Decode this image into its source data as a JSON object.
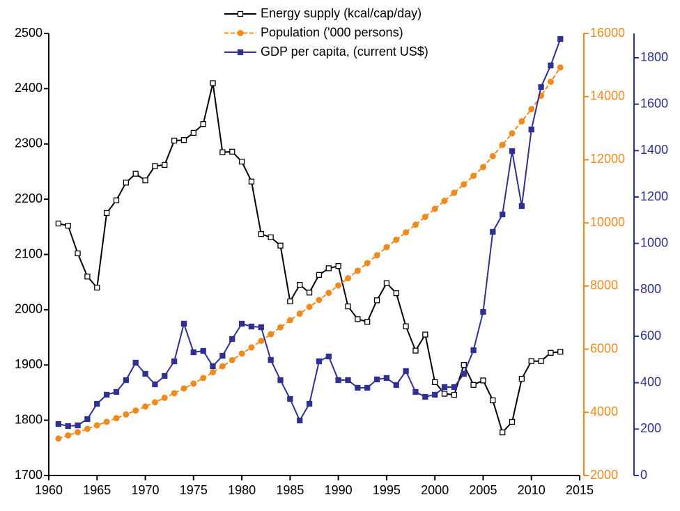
{
  "chart_data": {
    "type": "line",
    "x": [
      1961,
      1962,
      1963,
      1964,
      1965,
      1966,
      1967,
      1968,
      1969,
      1970,
      1971,
      1972,
      1973,
      1974,
      1975,
      1976,
      1977,
      1978,
      1979,
      1980,
      1981,
      1982,
      1983,
      1984,
      1985,
      1986,
      1987,
      1988,
      1989,
      1990,
      1991,
      1992,
      1993,
      1994,
      1995,
      1996,
      1997,
      1998,
      1999,
      2000,
      2001,
      2002,
      2003,
      2004,
      2005,
      2006,
      2007,
      2008,
      2009,
      2010,
      2011,
      2012,
      2013
    ],
    "xlim": [
      1960,
      2015
    ],
    "xticks": [
      1960,
      1965,
      1970,
      1975,
      1980,
      1985,
      1990,
      1995,
      2000,
      2005,
      2010,
      2015
    ],
    "ylim": [
      1700,
      2500
    ],
    "yticks": [
      1700,
      1800,
      1900,
      2000,
      2100,
      2200,
      2300,
      2400,
      2500
    ],
    "y2lim": [
      2000,
      16000
    ],
    "y2ticks": [
      2000,
      4000,
      6000,
      8000,
      10000,
      12000,
      14000,
      16000
    ],
    "y3lim": [
      0,
      1905
    ],
    "y3ticks": [
      0,
      200,
      400,
      600,
      800,
      1000,
      1200,
      1400,
      1600,
      1800
    ],
    "series": [
      {
        "name": "Energy supply (kcal/cap/day)",
        "color": "#000000",
        "marker": "open-square",
        "values": [
          2156,
          2152,
          2102,
          2060,
          2040,
          2175,
          2198,
          2230,
          2246,
          2234,
          2260,
          2262,
          2306,
          2307,
          2320,
          2336,
          2410,
          2285,
          2286,
          2268,
          2232,
          2137,
          2131,
          2116,
          2015,
          2045,
          2031,
          2063,
          2075,
          2079,
          2006,
          1983,
          1978,
          2017,
          2048,
          2030,
          1970,
          1926,
          1955,
          1869,
          1848,
          1846,
          1900,
          1864,
          1872,
          1836,
          1778,
          1797,
          1875,
          1907,
          1907,
          1922,
          1924
        ]
      },
      {
        "name": "Population ('000 persons)",
        "color": "#f08a1d",
        "marker": "circle",
        "dashed": true,
        "axis": "y2",
        "values": [
          3169,
          3269,
          3372,
          3478,
          3588,
          3700,
          3815,
          3934,
          4057,
          4183,
          4319,
          4460,
          4605,
          4756,
          4911,
          5087,
          5270,
          5459,
          5655,
          5859,
          6057,
          6262,
          6473,
          6692,
          6917,
          7125,
          7339,
          7559,
          7786,
          8020,
          8248,
          8483,
          8725,
          8974,
          9232,
          9463,
          9700,
          9942,
          10191,
          10445,
          10697,
          10955,
          11219,
          11490,
          11768,
          12114,
          12470,
          12837,
          13215,
          13600,
          14027,
          14468,
          14920
        ]
      },
      {
        "name": "GDP per capita, (current US$)",
        "color": "#2e3192",
        "marker": "filled-square",
        "axis": "y3",
        "values": [
          222,
          213,
          216,
          243,
          309,
          348,
          360,
          411,
          486,
          438,
          393,
          429,
          492,
          654,
          531,
          537,
          471,
          516,
          588,
          654,
          642,
          639,
          498,
          411,
          330,
          237,
          309,
          492,
          513,
          411,
          411,
          378,
          378,
          414,
          420,
          390,
          450,
          360,
          339,
          348,
          381,
          381,
          438,
          540,
          705,
          1050,
          1125,
          1398,
          1161,
          1491,
          1674,
          1767,
          1881
        ]
      }
    ]
  }
}
